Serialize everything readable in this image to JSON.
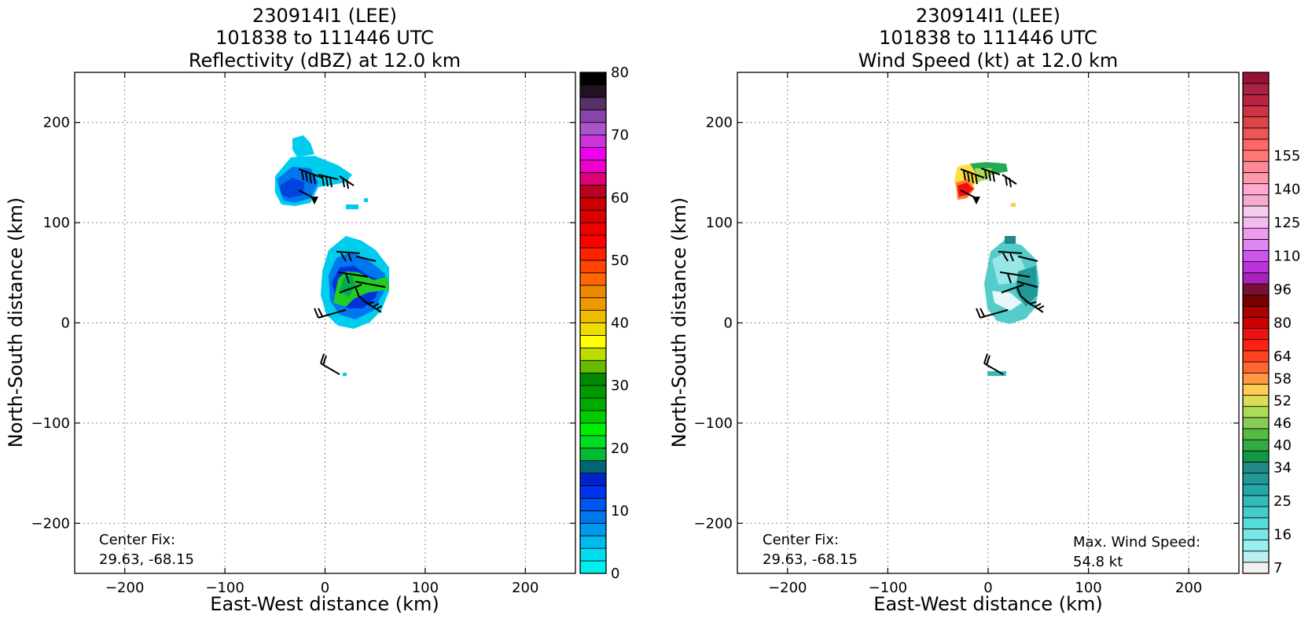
{
  "chart_data": [
    {
      "type": "heatmap",
      "title_lines": [
        "230914I1 (LEE)",
        "101838 to 111446 UTC",
        "Reflectivity (dBZ) at 12.0 km"
      ],
      "xlabel": "East-West distance (km)",
      "ylabel": "North-South distance (km)",
      "xlim": [
        -250,
        250
      ],
      "ylim": [
        -250,
        250
      ],
      "xticks": [
        -200,
        -100,
        0,
        100,
        200
      ],
      "yticks": [
        -200,
        -100,
        0,
        100,
        200
      ],
      "xtick_labels": [
        "−200",
        "−100",
        "0",
        "100",
        "200"
      ],
      "ytick_labels": [
        "−200",
        "−100",
        "0",
        "100",
        "200"
      ],
      "grid": true,
      "annotation_left": [
        "Center Fix:",
        "29.63, -68.15"
      ],
      "colorbar": {
        "ticks": [
          0,
          10,
          20,
          30,
          40,
          50,
          60,
          70,
          80
        ],
        "tick_labels": [
          "0",
          "10",
          "20",
          "30",
          "40",
          "50",
          "60",
          "70",
          "80"
        ],
        "colors": [
          "#00eeee",
          "#00ddee",
          "#00bbee",
          "#0099ee",
          "#0077ee",
          "#0055ee",
          "#0033ee",
          "#0022cc",
          "#006677",
          "#00bb33",
          "#00dd22",
          "#00ee00",
          "#00cc00",
          "#00aa00",
          "#009900",
          "#008800",
          "#66bb00",
          "#bbdd00",
          "#ffff00",
          "#eedd00",
          "#eebb00",
          "#ee9900",
          "#ee8800",
          "#ff6600",
          "#ff4400",
          "#ff2200",
          "#ff0000",
          "#ee0000",
          "#dd0000",
          "#cc0000",
          "#bb0022",
          "#dd0077",
          "#ee00cc",
          "#ee00ee",
          "#cc33dd",
          "#aa55cc",
          "#8844aa",
          "#553366",
          "#221122",
          "#000000"
        ]
      },
      "features": [
        {
          "name": "northern echo",
          "x": [
            -50,
            40
          ],
          "y": [
            115,
            190
          ],
          "shade": "blue"
        },
        {
          "name": "core echo",
          "x": [
            -5,
            65
          ],
          "y": [
            0,
            85
          ],
          "shade": "blue-green"
        },
        {
          "name": "small echo",
          "x": [
            15,
            25
          ],
          "y": [
            -55,
            -45
          ],
          "shade": "cyan"
        }
      ]
    },
    {
      "type": "heatmap",
      "title_lines": [
        "230914I1 (LEE)",
        "101838 to 111446 UTC",
        "Wind Speed (kt) at 12.0 km"
      ],
      "xlabel": "East-West distance (km)",
      "ylabel": "North-South distance (km)",
      "xlim": [
        -250,
        250
      ],
      "ylim": [
        -250,
        250
      ],
      "xticks": [
        -200,
        -100,
        0,
        100,
        200
      ],
      "yticks": [
        -200,
        -100,
        0,
        100,
        200
      ],
      "xtick_labels": [
        "−200",
        "−100",
        "0",
        "100",
        "200"
      ],
      "ytick_labels": [
        "−200",
        "−100",
        "0",
        "100",
        "200"
      ],
      "grid": true,
      "annotation_left": [
        "Center Fix:",
        "29.63, -68.15"
      ],
      "annotation_right": [
        "Max. Wind Speed:",
        "54.8 kt"
      ],
      "colorbar": {
        "tick_labels": [
          "7",
          "16",
          "25",
          "34",
          "40",
          "46",
          "52",
          "58",
          "64",
          "80",
          "96",
          "110",
          "125",
          "140",
          "155"
        ],
        "tick_bins": [
          0,
          3,
          6,
          9,
          11,
          13,
          15,
          17,
          19,
          22,
          25,
          28,
          31,
          34,
          37
        ],
        "colors": [
          "#f0f0f0",
          "#bbf0f0",
          "#99eeee",
          "#77e6e6",
          "#55dddd",
          "#44cccc",
          "#33bbbb",
          "#22aaaa",
          "#229999",
          "#228888",
          "#119944",
          "#33aa44",
          "#55bb44",
          "#88cc55",
          "#aadd55",
          "#dddd55",
          "#ffcc55",
          "#ff9944",
          "#ff6633",
          "#ff4422",
          "#ff2211",
          "#ee1111",
          "#cc0000",
          "#aa0000",
          "#770000",
          "#771133",
          "#aa22bb",
          "#bb33dd",
          "#cc55ee",
          "#dd88ee",
          "#ee99ee",
          "#f2bbee",
          "#f4ccee",
          "#f8aacc",
          "#ffaacc",
          "#ff99aa",
          "#ff8899",
          "#ff7777",
          "#ff6666",
          "#ee5555",
          "#dd4444",
          "#cc3344",
          "#bb2244",
          "#aa2244",
          "#991133"
        ]
      },
      "features": [
        {
          "name": "northern wind patch",
          "x": [
            -35,
            25
          ],
          "y": [
            120,
            160
          ],
          "shade": "yellow-red"
        },
        {
          "name": "core wind patch",
          "x": [
            0,
            55
          ],
          "y": [
            -5,
            85
          ],
          "shade": "cyan-teal"
        },
        {
          "name": "small wind patch",
          "x": [
            5,
            20
          ],
          "y": [
            -52,
            -47
          ],
          "shade": "teal"
        }
      ]
    }
  ]
}
